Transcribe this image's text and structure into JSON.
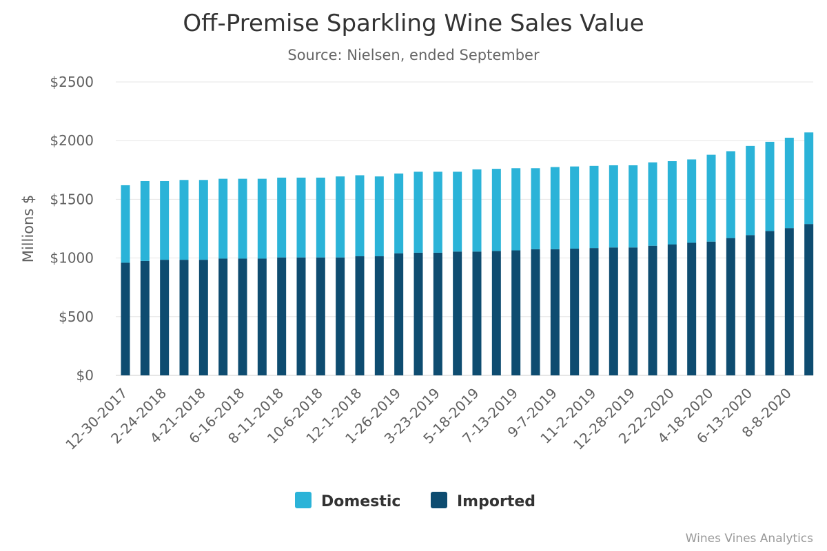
{
  "chart_data": {
    "type": "bar",
    "stacked": true,
    "title": "Off-Premise Sparkling Wine Sales Value",
    "subtitle": "Source: Nielsen, ended September",
    "ylabel": "Millions $",
    "xlabel": "",
    "ylim": [
      0,
      2500
    ],
    "yticks": [
      0,
      500,
      1000,
      1500,
      2000,
      2500
    ],
    "ytick_labels": [
      "$0",
      "$500",
      "$1000",
      "$1500",
      "$2000",
      "$2500"
    ],
    "grid": true,
    "legend_position": "bottom",
    "categories": [
      "12-30-2017",
      "1-27-2018",
      "2-24-2018",
      "3-24-2018",
      "4-21-2018",
      "5-19-2018",
      "6-16-2018",
      "7-14-2018",
      "8-11-2018",
      "9-8-2018",
      "10-6-2018",
      "11-3-2018",
      "12-1-2018",
      "12-29-2018",
      "1-26-2019",
      "2-23-2019",
      "3-23-2019",
      "4-20-2019",
      "5-18-2019",
      "6-15-2019",
      "7-13-2019",
      "8-10-2019",
      "9-7-2019",
      "10-5-2019",
      "11-2-2019",
      "11-30-2019",
      "12-28-2019",
      "1-25-2020",
      "2-22-2020",
      "3-21-2020",
      "4-18-2020",
      "5-16-2020",
      "6-13-2020",
      "7-11-2020",
      "8-8-2020",
      "9-5-2020"
    ],
    "tick_labels_shown": [
      "12-30-2017",
      "2-24-2018",
      "4-21-2018",
      "6-16-2018",
      "8-11-2018",
      "10-6-2018",
      "12-1-2018",
      "1-26-2019",
      "3-23-2019",
      "5-18-2019",
      "7-13-2019",
      "9-7-2019",
      "11-2-2019",
      "12-28-2019",
      "2-22-2020",
      "4-18-2020",
      "6-13-2020",
      "8-8-2020"
    ],
    "series": [
      {
        "name": "Domestic",
        "color": "#2bb3d8",
        "values": [
          660,
          680,
          670,
          680,
          680,
          680,
          680,
          680,
          680,
          680,
          680,
          690,
          690,
          680,
          680,
          690,
          690,
          680,
          700,
          700,
          700,
          690,
          700,
          700,
          700,
          700,
          700,
          710,
          710,
          710,
          740,
          740,
          760,
          760,
          770,
          780
        ]
      },
      {
        "name": "Imported",
        "color": "#0e4c70",
        "values": [
          960,
          975,
          985,
          985,
          985,
          995,
          995,
          995,
          1005,
          1005,
          1005,
          1005,
          1015,
          1015,
          1040,
          1045,
          1045,
          1055,
          1055,
          1060,
          1065,
          1075,
          1075,
          1080,
          1085,
          1090,
          1090,
          1105,
          1115,
          1130,
          1140,
          1170,
          1195,
          1230,
          1255,
          1290
        ]
      }
    ]
  },
  "credit": "Wines Vines Analytics"
}
